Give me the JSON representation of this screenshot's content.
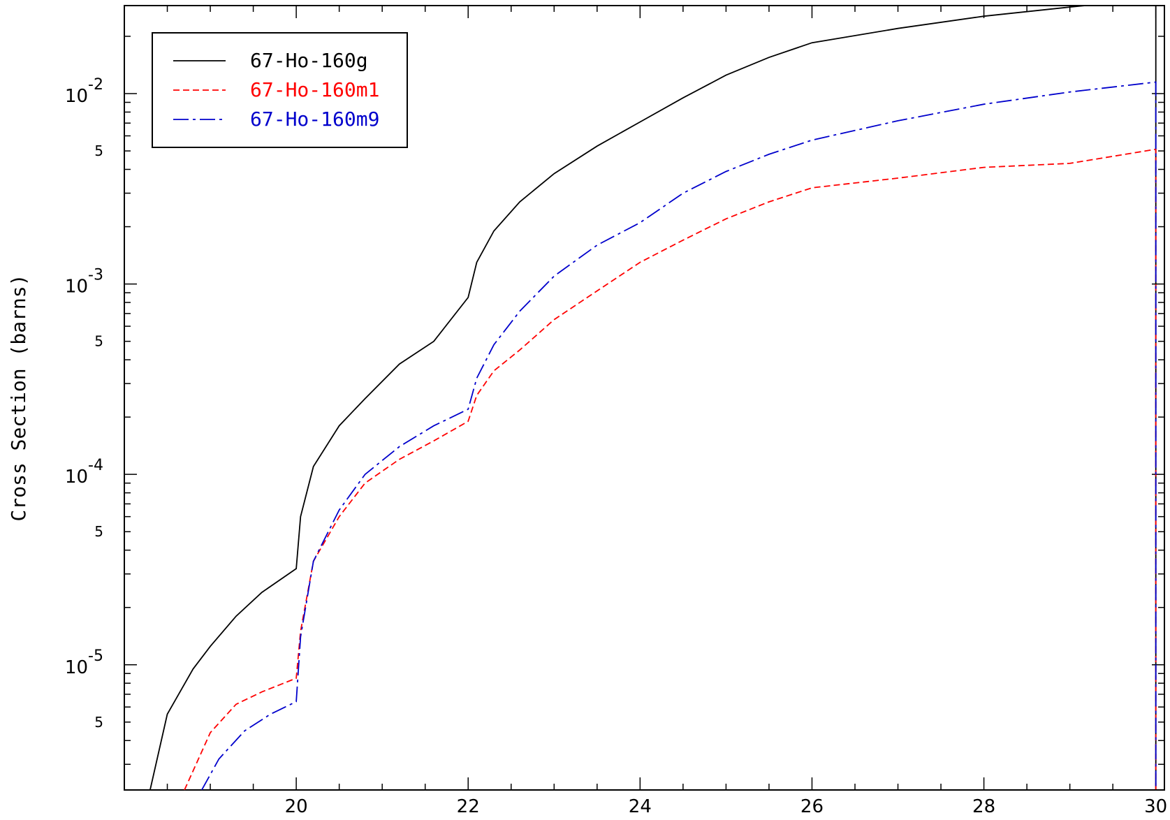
{
  "chart_data": {
    "type": "line",
    "title": "",
    "xlabel": "",
    "ylabel": "Cross Section (barns)",
    "xlim": [
      18.0,
      30.1
    ],
    "ylim": [
      2.2e-06,
      0.029
    ],
    "yscale": "log",
    "grid": false,
    "legend_position": "top-left",
    "x_ticks": [
      "20",
      "22",
      "24",
      "26",
      "28",
      "30"
    ],
    "x_tick_values": [
      20,
      22,
      24,
      26,
      28,
      30
    ],
    "y_decades": [
      {
        "base": "10",
        "exp": "-5",
        "value": 1e-05
      },
      {
        "base": "10",
        "exp": "-4",
        "value": 0.0001
      },
      {
        "base": "10",
        "exp": "-3",
        "value": 0.001
      },
      {
        "base": "10",
        "exp": "-2",
        "value": 0.01
      }
    ],
    "y_minor_label": "5",
    "series": [
      {
        "name": "67-Ho-160g",
        "color": "#000000",
        "dash": "solid",
        "x": [
          18.3,
          18.5,
          18.8,
          19.0,
          19.3,
          19.6,
          20.0,
          20.05,
          20.2,
          20.5,
          20.8,
          21.2,
          21.6,
          22.0,
          22.1,
          22.3,
          22.6,
          23.0,
          23.5,
          24.0,
          24.5,
          25.0,
          25.5,
          26.0,
          27.0,
          28.0,
          29.0,
          30.0
        ],
        "y": [
          2.2e-06,
          5.5e-06,
          9.5e-06,
          1.25e-05,
          1.8e-05,
          2.4e-05,
          3.2e-05,
          6e-05,
          0.00011,
          0.00018,
          0.00025,
          0.00038,
          0.0005,
          0.00085,
          0.0013,
          0.0019,
          0.0027,
          0.0038,
          0.0053,
          0.0071,
          0.0095,
          0.0125,
          0.0155,
          0.0185,
          0.022,
          0.0255,
          0.0285,
          0.0315
        ]
      },
      {
        "name": "67-Ho-160m1",
        "color": "#ff0000",
        "dash": "dashed",
        "x": [
          18.7,
          19.0,
          19.3,
          19.6,
          20.0,
          20.05,
          20.2,
          20.5,
          20.8,
          21.2,
          21.6,
          22.0,
          22.1,
          22.3,
          22.6,
          23.0,
          23.5,
          24.0,
          24.5,
          25.0,
          25.5,
          26.0,
          27.0,
          28.0,
          29.0,
          30.0
        ],
        "y": [
          2.2e-06,
          4.4e-06,
          6.2e-06,
          7.2e-06,
          8.5e-06,
          1.5e-05,
          3.5e-05,
          6e-05,
          9e-05,
          0.00012,
          0.00015,
          0.00019,
          0.00026,
          0.00035,
          0.00045,
          0.00065,
          0.00092,
          0.0013,
          0.0017,
          0.0022,
          0.0027,
          0.0032,
          0.0036,
          0.0041,
          0.0043,
          0.0051
        ]
      },
      {
        "name": "67-Ho-160m9",
        "color": "#0000cc",
        "dash": "dashdot",
        "x": [
          18.9,
          19.1,
          19.4,
          19.7,
          20.0,
          20.05,
          20.2,
          20.5,
          20.8,
          21.2,
          21.6,
          22.0,
          22.1,
          22.3,
          22.6,
          23.0,
          23.5,
          24.0,
          24.5,
          25.0,
          25.5,
          26.0,
          27.0,
          28.0,
          29.0,
          30.0
        ],
        "y": [
          2.2e-06,
          3.2e-06,
          4.5e-06,
          5.5e-06,
          6.4e-06,
          1.4e-05,
          3.5e-05,
          6.5e-05,
          0.0001,
          0.00014,
          0.00018,
          0.00022,
          0.00032,
          0.00048,
          0.00072,
          0.0011,
          0.0016,
          0.0021,
          0.003,
          0.0039,
          0.0048,
          0.0057,
          0.0072,
          0.0088,
          0.0102,
          0.0115
        ]
      }
    ]
  }
}
